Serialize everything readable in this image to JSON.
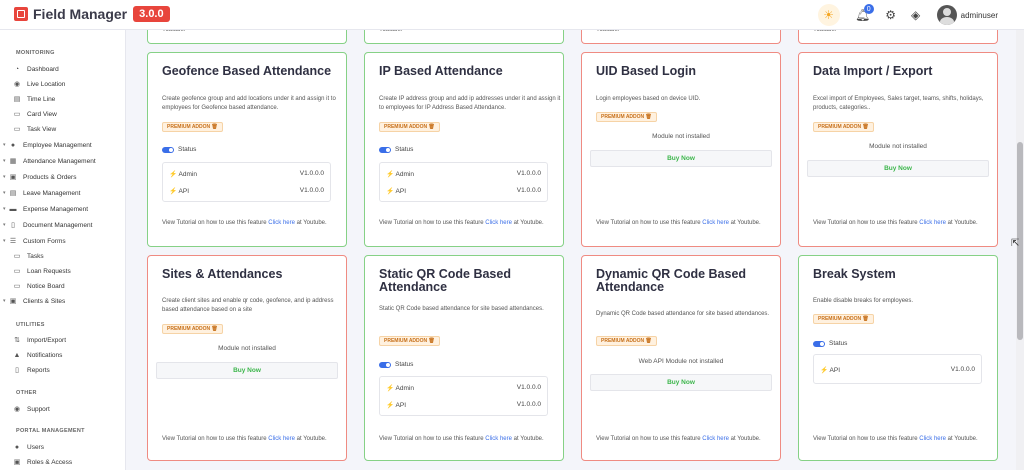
{
  "app": {
    "name": "Field Manager",
    "version": "3.0.0"
  },
  "topbar": {
    "notification_count": "0",
    "username": "adminuser"
  },
  "sidebar": {
    "monitoring_title": "MONITORING",
    "monitoring": [
      "Dashboard",
      "Live Location",
      "Time Line",
      "Card View",
      "Task View"
    ],
    "management": [
      "Employee Management",
      "Attendance Management",
      "Products & Orders",
      "Leave Management",
      "Expense Management",
      "Document Management",
      "Custom Forms",
      "Tasks",
      "Loan Requests",
      "Notice Board",
      "Clients & Sites"
    ],
    "utilities_title": "UTILITIES",
    "utilities": [
      "Import/Export",
      "Notifications",
      "Reports"
    ],
    "other_title": "OTHER",
    "other": [
      "Support"
    ],
    "portal_title": "PORTAL MANAGEMENT",
    "portal": [
      "Users",
      "Roles & Access"
    ]
  },
  "common": {
    "premium_addon": "PREMIUM ADDON",
    "status": "Status",
    "admin": "Admin",
    "api": "API",
    "version": "V1.0.0.0",
    "module_not_installed": "Module not installed",
    "web_api_not_installed": "Web API Module not installed",
    "buy_now": "Buy Now",
    "tutorial_prefix": "View Tutorial on how to use this feature",
    "click_here": "Click here",
    "tutorial_suffix": "at Youtube.",
    "youtube_fragment": "Youtube."
  },
  "cards": {
    "geofence": {
      "title": "Geofence Based Attendance",
      "desc": "Create geofence group and add locations under it and assign it to employees for Geofence based attendance."
    },
    "ip": {
      "title": "IP Based Attendance",
      "desc": "Create IP address group and add ip addresses under it and assign it to employees for IP Address Based Attendance."
    },
    "uid": {
      "title": "UID Based Login",
      "desc": "Login employees based on device UID."
    },
    "import": {
      "title": "Data Import / Export",
      "desc": "Excel import of Employees, Sales target, teams, shifts, holidays, products, categories.."
    },
    "sites": {
      "title": "Sites & Attendances",
      "desc": "Create client sites and enable qr code, geofence, and ip address based attendance based on a site"
    },
    "static_qr": {
      "title": "Static QR Code Based Attendance",
      "desc": "Static QR Code based attendance for site based attendances."
    },
    "dynamic_qr": {
      "title": "Dynamic QR Code Based Attendance",
      "desc": "Dynamic QR Code based attendance for site based attendances."
    },
    "break": {
      "title": "Break System",
      "desc": "Enable disable breaks for employees."
    }
  },
  "colors": {
    "accent": "#3a6ee8",
    "brand": "#e8453c",
    "installed_border": "#86d186",
    "not_installed_border": "#ef8b82",
    "buy": "#3bb54a"
  }
}
